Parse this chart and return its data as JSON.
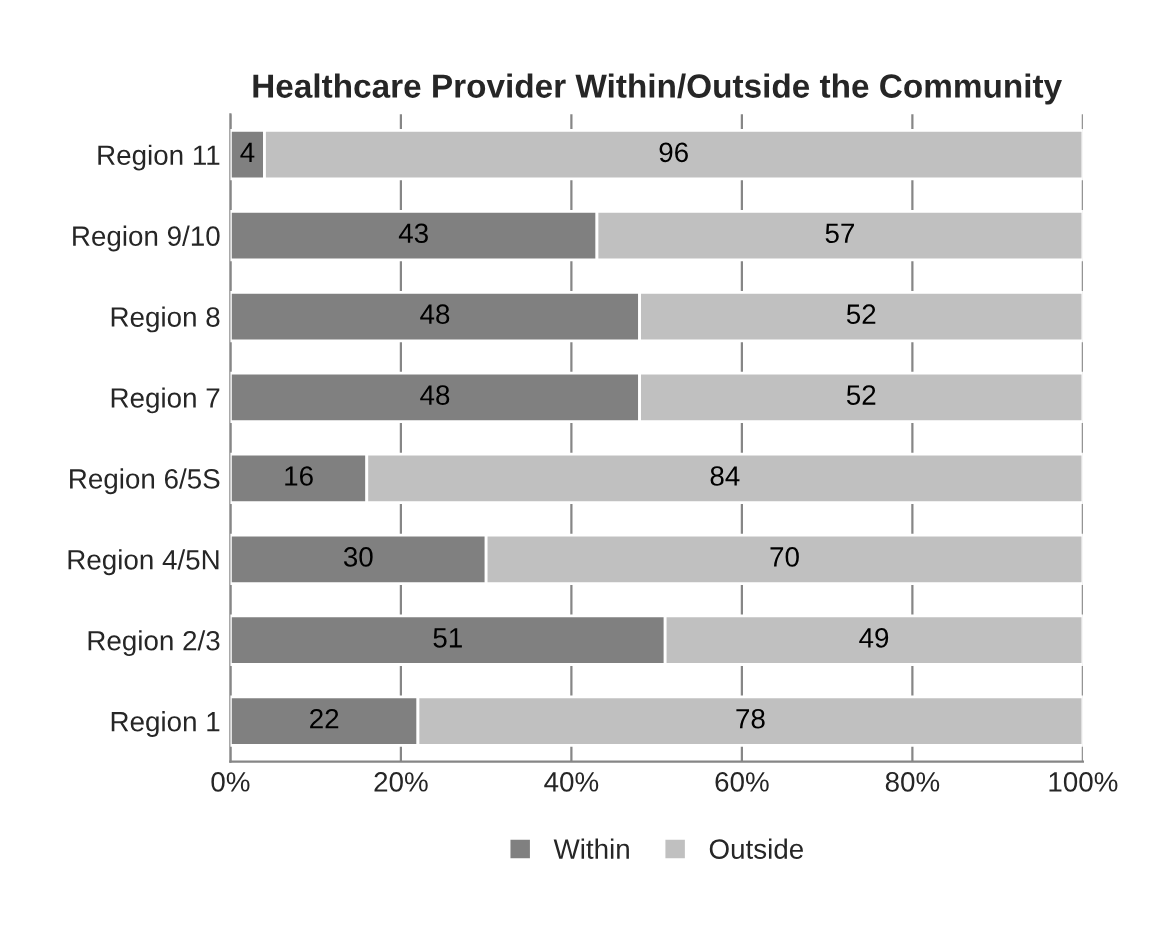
{
  "chart_data": {
    "type": "bar",
    "title": "Healthcare Provider Within/Outside the Community",
    "orientation": "horizontal",
    "stacked": true,
    "categories": [
      "Region 11",
      "Region 9/10",
      "Region 8",
      "Region 7",
      "Region 6/5S",
      "Region 4/5N",
      "Region 2/3",
      "Region 1"
    ],
    "series": [
      {
        "name": "Within",
        "color": "#808080",
        "values": [
          4,
          43,
          48,
          48,
          16,
          30,
          51,
          22
        ]
      },
      {
        "name": "Outside",
        "color": "#c0c0c0",
        "values": [
          96,
          57,
          52,
          52,
          84,
          70,
          49,
          78
        ]
      }
    ],
    "xlim": [
      0,
      100
    ],
    "xticks": [
      {
        "value": 0,
        "label": "0%"
      },
      {
        "value": 20,
        "label": "20%"
      },
      {
        "value": 40,
        "label": "40%"
      },
      {
        "value": 60,
        "label": "60%"
      },
      {
        "value": 80,
        "label": "80%"
      },
      {
        "value": 100,
        "label": "100%"
      }
    ],
    "grid": "x",
    "legend": "bottom",
    "data_labels": true
  }
}
